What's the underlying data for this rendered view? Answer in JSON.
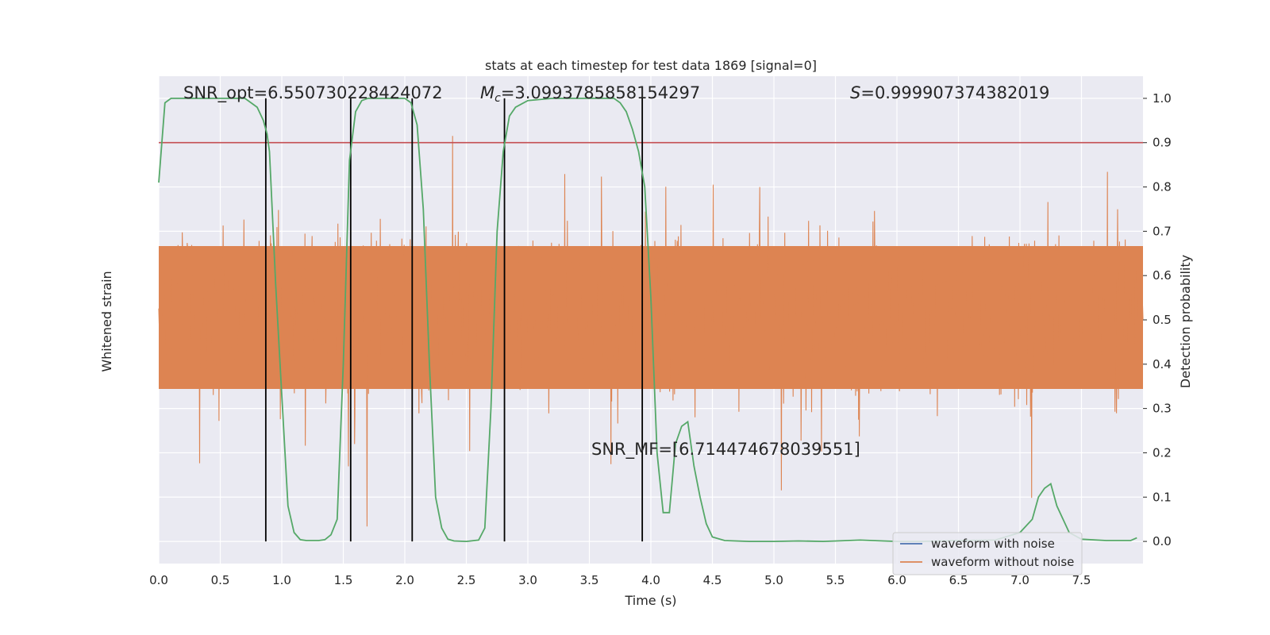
{
  "chart_data": {
    "type": "line",
    "title": "stats at each timestep for test data 1869 [signal=0]",
    "xlabel": "Time (s)",
    "ylabel_left": "Whitened strain",
    "ylabel_right": "Detection probability",
    "xlim": [
      0,
      8
    ],
    "ylim_right": [
      -0.05,
      1.05
    ],
    "x_ticks": [
      "0.0",
      "0.5",
      "1.0",
      "1.5",
      "2.0",
      "2.5",
      "3.0",
      "3.5",
      "4.0",
      "4.5",
      "5.0",
      "5.5",
      "6.0",
      "6.5",
      "7.0",
      "7.5"
    ],
    "y_ticks_right": [
      "0.0",
      "0.1",
      "0.2",
      "0.3",
      "0.4",
      "0.5",
      "0.6",
      "0.7",
      "0.8",
      "0.9",
      "1.0"
    ],
    "grid": true,
    "threshold": 0.9,
    "vertical_markers": [
      0.87,
      1.56,
      2.06,
      2.81,
      3.93
    ],
    "annotations": {
      "snr_opt": "SNR_opt=6.550730228424072",
      "mc_symbol": "M",
      "mc_sub": "c",
      "mc_value": "=3.0993785858154297",
      "s_symbol": "S",
      "s_value": "=0.999907374382019",
      "snr_mf": "SNR_MF=[6.714474678039551]"
    },
    "series": [
      {
        "name": "waveform with noise",
        "color": "#4c72b0"
      },
      {
        "name": "waveform without noise",
        "color": "#dd8452"
      }
    ],
    "probability_series": {
      "color": "#55a868",
      "x": [
        0.0,
        0.05,
        0.1,
        0.15,
        0.2,
        0.3,
        0.4,
        0.5,
        0.6,
        0.7,
        0.75,
        0.8,
        0.85,
        0.88,
        0.9,
        0.95,
        1.0,
        1.05,
        1.1,
        1.15,
        1.2,
        1.3,
        1.35,
        1.4,
        1.45,
        1.5,
        1.55,
        1.6,
        1.65,
        1.7,
        1.8,
        1.9,
        2.0,
        2.05,
        2.1,
        2.15,
        2.2,
        2.25,
        2.3,
        2.35,
        2.4,
        2.5,
        2.6,
        2.65,
        2.7,
        2.75,
        2.8,
        2.85,
        2.9,
        3.0,
        3.2,
        3.4,
        3.6,
        3.7,
        3.75,
        3.8,
        3.85,
        3.9,
        3.95,
        4.0,
        4.05,
        4.1,
        4.15,
        4.2,
        4.25,
        4.3,
        4.35,
        4.4,
        4.45,
        4.5,
        4.6,
        4.8,
        5.0,
        5.2,
        5.4,
        5.6,
        5.7,
        5.8,
        6.0,
        6.2,
        6.5,
        6.8,
        7.0,
        7.1,
        7.15,
        7.2,
        7.25,
        7.3,
        7.35,
        7.4,
        7.5,
        7.7,
        7.9,
        7.95
      ],
      "y": [
        0.81,
        0.99,
        1.0,
        1.0,
        1.0,
        1.0,
        1.0,
        1.0,
        1.0,
        1.0,
        0.99,
        0.98,
        0.95,
        0.92,
        0.88,
        0.58,
        0.33,
        0.08,
        0.02,
        0.004,
        0.002,
        0.002,
        0.004,
        0.015,
        0.05,
        0.4,
        0.86,
        0.97,
        0.995,
        1.0,
        1.0,
        1.0,
        1.0,
        0.99,
        0.94,
        0.75,
        0.4,
        0.1,
        0.03,
        0.005,
        0.001,
        0.0,
        0.003,
        0.03,
        0.3,
        0.7,
        0.88,
        0.96,
        0.98,
        0.995,
        1.0,
        1.0,
        1.0,
        1.0,
        0.99,
        0.97,
        0.93,
        0.88,
        0.8,
        0.55,
        0.2,
        0.065,
        0.065,
        0.22,
        0.26,
        0.27,
        0.17,
        0.1,
        0.04,
        0.01,
        0.002,
        0.0,
        0.0,
        0.001,
        0.0,
        0.002,
        0.003,
        0.002,
        0.0,
        0.0,
        0.002,
        0.003,
        0.02,
        0.05,
        0.1,
        0.12,
        0.13,
        0.08,
        0.05,
        0.02,
        0.005,
        0.002,
        0.002,
        0.008
      ]
    },
    "legend": {
      "position": "lower-right",
      "entries": [
        "waveform with noise",
        "waveform without noise"
      ]
    }
  }
}
